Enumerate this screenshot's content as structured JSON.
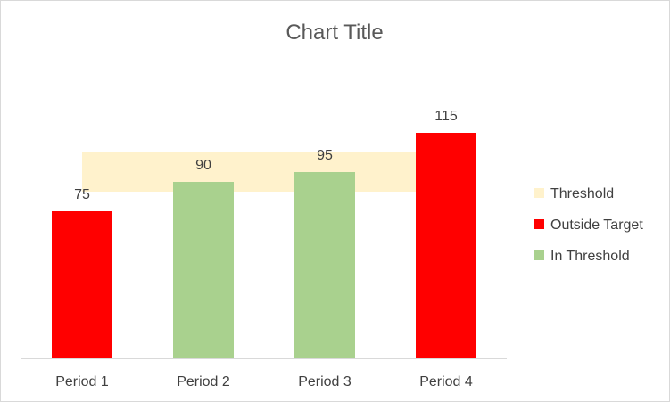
{
  "chart_data": {
    "type": "bar",
    "title": "Chart Title",
    "categories": [
      "Period 1",
      "Period 2",
      "Period 3",
      "Period 4"
    ],
    "values": [
      75,
      90,
      95,
      115
    ],
    "point_series": [
      "Outside Target",
      "In Threshold",
      "In Threshold",
      "Outside Target"
    ],
    "data_labels": [
      "75",
      "90",
      "95",
      "115"
    ],
    "threshold_band": [
      85,
      105
    ],
    "ylim": [
      0,
      130
    ],
    "grid": false,
    "legend_position": "right",
    "legend": [
      {
        "name": "Threshold",
        "color": "#fff2cc"
      },
      {
        "name": "Outside Target",
        "color": "#ff0000"
      },
      {
        "name": "In Threshold",
        "color": "#a9d18e"
      }
    ],
    "colors": {
      "Outside Target": "#ff0000",
      "In Threshold": "#a9d18e",
      "Threshold": "#fff2cc"
    }
  }
}
